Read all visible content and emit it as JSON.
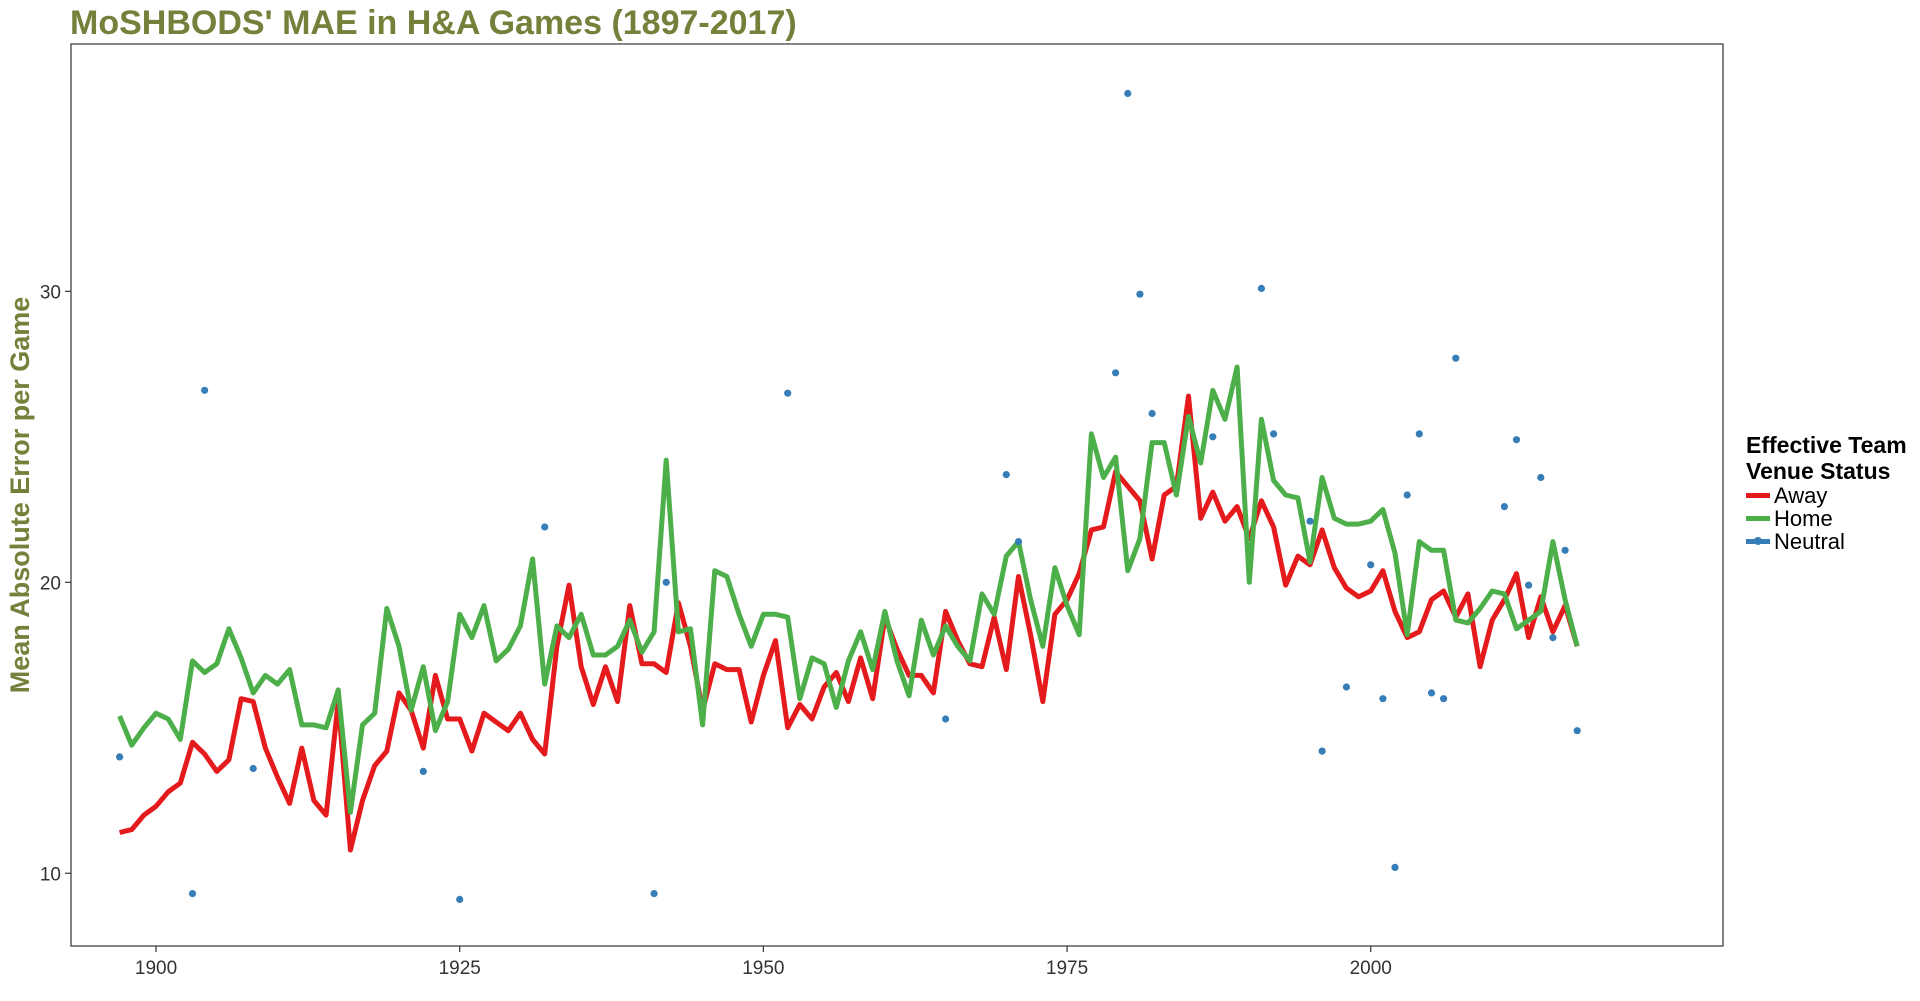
{
  "chart_data": {
    "type": "line",
    "title": "MoSHBODS' MAE in H&A Games (1897-2017)",
    "xlabel": "",
    "ylabel": "Mean Absolute Error per Game",
    "xlim": [
      1893,
      2029
    ],
    "ylim": [
      7.5,
      38.5
    ],
    "x_ticks": [
      1900,
      1925,
      1950,
      1975,
      2000
    ],
    "y_ticks": [
      10,
      20,
      30
    ],
    "grid": false,
    "legend": {
      "title": "Effective Team Venue Status",
      "title_lines": [
        "Effective Team",
        "Venue Status"
      ],
      "position": "right"
    },
    "series": [
      {
        "name": "Away",
        "color": "#e41a1c",
        "style": "line",
        "x": [
          1897,
          1898,
          1899,
          1900,
          1901,
          1902,
          1903,
          1904,
          1905,
          1906,
          1907,
          1908,
          1909,
          1910,
          1911,
          1912,
          1913,
          1914,
          1915,
          1916,
          1917,
          1918,
          1919,
          1920,
          1921,
          1922,
          1923,
          1924,
          1925,
          1926,
          1927,
          1928,
          1929,
          1930,
          1931,
          1932,
          1933,
          1934,
          1935,
          1936,
          1937,
          1938,
          1939,
          1940,
          1941,
          1942,
          1943,
          1944,
          1945,
          1946,
          1947,
          1948,
          1949,
          1950,
          1951,
          1952,
          1953,
          1954,
          1955,
          1956,
          1957,
          1958,
          1959,
          1960,
          1961,
          1962,
          1963,
          1964,
          1965,
          1966,
          1967,
          1968,
          1969,
          1970,
          1971,
          1972,
          1973,
          1974,
          1975,
          1976,
          1977,
          1978,
          1979,
          1980,
          1981,
          1982,
          1983,
          1984,
          1985,
          1986,
          1987,
          1988,
          1989,
          1990,
          1991,
          1992,
          1993,
          1994,
          1995,
          1996,
          1997,
          1998,
          1999,
          2000,
          2001,
          2002,
          2003,
          2004,
          2005,
          2006,
          2007,
          2008,
          2009,
          2010,
          2011,
          2012,
          2013,
          2014,
          2015,
          2016,
          2017
        ],
        "values": [
          11.4,
          11.5,
          12.0,
          12.3,
          12.8,
          13.1,
          14.5,
          14.1,
          13.5,
          13.9,
          16.0,
          15.9,
          14.3,
          13.3,
          12.4,
          14.3,
          12.5,
          12.0,
          15.9,
          10.8,
          12.5,
          13.7,
          14.2,
          16.2,
          15.6,
          14.3,
          16.8,
          15.3,
          15.3,
          14.2,
          15.5,
          15.2,
          14.9,
          15.5,
          14.6,
          14.1,
          17.8,
          19.9,
          17.1,
          15.8,
          17.1,
          15.9,
          19.2,
          17.2,
          17.2,
          16.9,
          19.3,
          17.8,
          15.6,
          17.2,
          17.0,
          17.0,
          15.2,
          16.8,
          18.0,
          15.0,
          15.8,
          15.3,
          16.4,
          16.9,
          15.9,
          17.4,
          16.0,
          18.8,
          17.7,
          16.8,
          16.8,
          16.2,
          19.0,
          18.0,
          17.2,
          17.1,
          18.8,
          17.0,
          20.2,
          18.2,
          15.9,
          18.9,
          19.4,
          20.3,
          21.8,
          21.9,
          23.8,
          23.3,
          22.8,
          20.8,
          23.0,
          23.3,
          26.4,
          22.2,
          23.1,
          22.1,
          22.6,
          21.5,
          22.8,
          21.9,
          19.9,
          20.9,
          20.6,
          21.8,
          20.5,
          19.8,
          19.5,
          19.7,
          20.4,
          19.0,
          18.1,
          18.3,
          19.4,
          19.7,
          18.8,
          19.6,
          17.1,
          18.7,
          19.4,
          20.3,
          18.1,
          19.5,
          18.3,
          19.2,
          17.8
        ]
      },
      {
        "name": "Home",
        "color": "#4daf4a",
        "style": "line",
        "x": [
          1897,
          1898,
          1899,
          1900,
          1901,
          1902,
          1903,
          1904,
          1905,
          1906,
          1907,
          1908,
          1909,
          1910,
          1911,
          1912,
          1913,
          1914,
          1915,
          1916,
          1917,
          1918,
          1919,
          1920,
          1921,
          1922,
          1923,
          1924,
          1925,
          1926,
          1927,
          1928,
          1929,
          1930,
          1931,
          1932,
          1933,
          1934,
          1935,
          1936,
          1937,
          1938,
          1939,
          1940,
          1941,
          1942,
          1943,
          1944,
          1945,
          1946,
          1947,
          1948,
          1949,
          1950,
          1951,
          1952,
          1953,
          1954,
          1955,
          1956,
          1957,
          1958,
          1959,
          1960,
          1961,
          1962,
          1963,
          1964,
          1965,
          1966,
          1967,
          1968,
          1969,
          1970,
          1971,
          1972,
          1973,
          1974,
          1975,
          1976,
          1977,
          1978,
          1979,
          1980,
          1981,
          1982,
          1983,
          1984,
          1985,
          1986,
          1987,
          1988,
          1989,
          1990,
          1991,
          1992,
          1993,
          1994,
          1995,
          1996,
          1997,
          1998,
          1999,
          2000,
          2001,
          2002,
          2003,
          2004,
          2005,
          2006,
          2007,
          2008,
          2009,
          2010,
          2011,
          2012,
          2013,
          2014,
          2015,
          2016,
          2017
        ],
        "values": [
          15.4,
          14.4,
          15.0,
          15.5,
          15.3,
          14.6,
          17.3,
          16.9,
          17.2,
          18.4,
          17.4,
          16.2,
          16.8,
          16.5,
          17.0,
          15.1,
          15.1,
          15.0,
          16.3,
          12.1,
          15.1,
          15.5,
          19.1,
          17.8,
          15.6,
          17.1,
          14.9,
          15.9,
          18.9,
          18.1,
          19.2,
          17.3,
          17.7,
          18.5,
          20.8,
          16.5,
          18.5,
          18.1,
          18.9,
          17.5,
          17.5,
          17.8,
          18.7,
          17.6,
          18.3,
          24.2,
          18.3,
          18.4,
          15.1,
          20.4,
          20.2,
          18.9,
          17.8,
          18.9,
          18.9,
          18.8,
          16.0,
          17.4,
          17.2,
          15.7,
          17.3,
          18.3,
          17.0,
          19.0,
          17.3,
          16.1,
          18.7,
          17.5,
          18.5,
          17.8,
          17.3,
          19.6,
          18.9,
          20.9,
          21.4,
          19.4,
          17.8,
          20.5,
          19.2,
          18.2,
          25.1,
          23.6,
          24.3,
          20.4,
          21.5,
          24.8,
          24.8,
          23.0,
          25.7,
          24.1,
          26.6,
          25.6,
          27.4,
          20.0,
          25.6,
          23.5,
          23.0,
          22.9,
          20.7,
          23.6,
          22.2,
          22.0,
          22.0,
          22.1,
          22.5,
          21.0,
          18.2,
          21.4,
          21.1,
          21.1,
          18.7,
          18.6,
          19.1,
          19.7,
          19.6,
          18.4,
          18.7,
          19.0,
          21.4,
          19.4,
          17.8
        ]
      },
      {
        "name": "Neutral",
        "color": "#377eb8",
        "style": "points",
        "x": [
          1897,
          1903,
          1904,
          1908,
          1922,
          1925,
          1932,
          1941,
          1942,
          1952,
          1965,
          1970,
          1971,
          1979,
          1980,
          1981,
          1982,
          1987,
          1991,
          1992,
          1995,
          1996,
          1998,
          2000,
          2001,
          2002,
          2003,
          2004,
          2005,
          2006,
          2007,
          2011,
          2012,
          2013,
          2014,
          2015,
          2016,
          2017
        ],
        "values": [
          14.0,
          9.3,
          26.6,
          13.6,
          13.5,
          9.1,
          21.9,
          9.3,
          20.0,
          26.5,
          15.3,
          23.7,
          21.4,
          27.2,
          36.8,
          29.9,
          25.8,
          25.0,
          30.1,
          25.1,
          22.1,
          14.2,
          16.4,
          20.6,
          16.0,
          10.2,
          23.0,
          25.1,
          16.2,
          16.0,
          27.7,
          22.6,
          24.9,
          19.9,
          23.6,
          18.1,
          21.1,
          14.9
        ]
      }
    ]
  }
}
